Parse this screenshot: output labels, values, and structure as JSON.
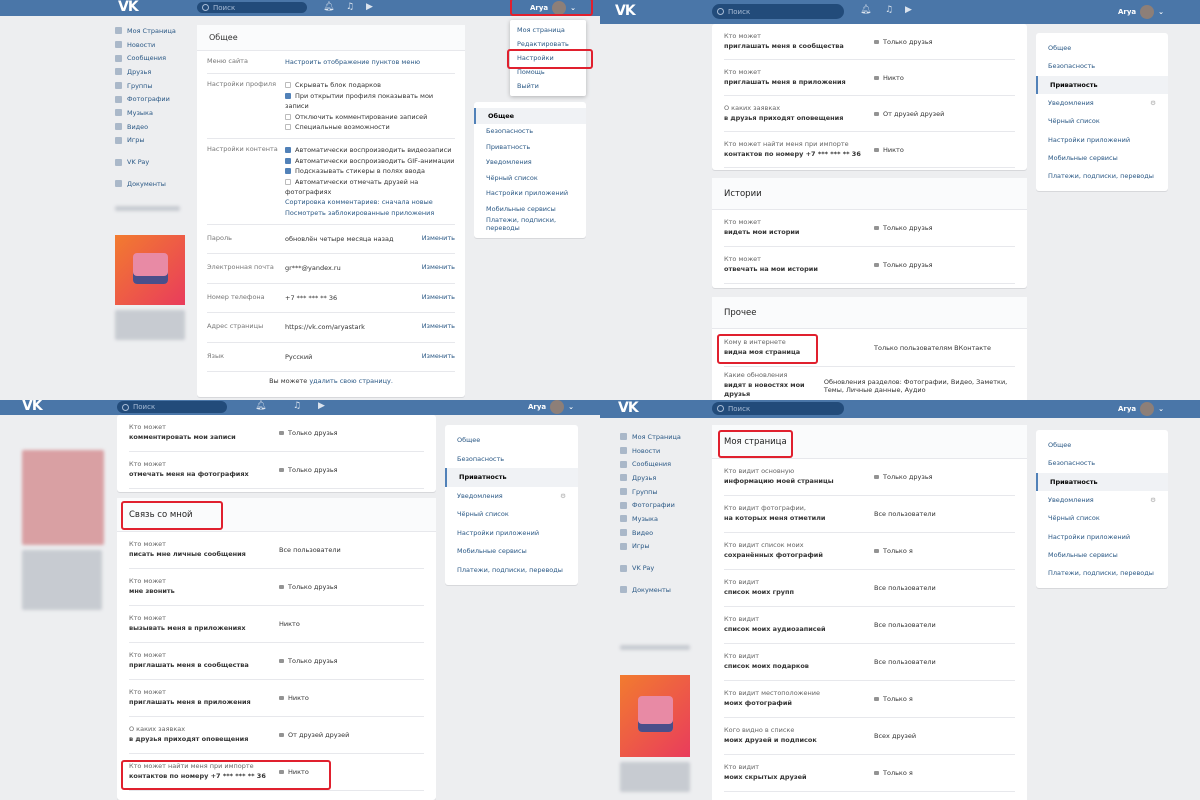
{
  "header": {
    "logo": "VK",
    "search_placeholder": "Поиск",
    "user_name": "Arya"
  },
  "colors": {
    "header": "#4a76a8",
    "link": "#2a5885",
    "highlight": "#e0202e"
  },
  "left_menu": [
    "Моя Страница",
    "Новости",
    "Сообщения",
    "Друзья",
    "Группы",
    "Фотографии",
    "Музыка",
    "Видео",
    "Игры",
    "VK Pay",
    "Документы"
  ],
  "settings_menu": [
    "Общее",
    "Безопасность",
    "Приватность",
    "Уведомления",
    "Чёрный список",
    "Настройки приложений",
    "Мобильные сервисы",
    "Платежи, подписки, переводы"
  ],
  "dropdown": [
    "Моя страница",
    "Редактировать",
    "Настройки",
    "Помощь",
    "Выйти"
  ],
  "general": {
    "title": "Общее",
    "menu_label": "Меню сайта",
    "menu_value": "Настроить отображение пунктов меню",
    "profile_label": "Настройки профиля",
    "profile_options": [
      {
        "text": "Скрывать блок подарков",
        "checked": false
      },
      {
        "text": "При открытии профиля показывать мои записи",
        "checked": true
      },
      {
        "text": "Отключить комментирование записей",
        "checked": false
      },
      {
        "text": "Специальные возможности",
        "checked": false
      }
    ],
    "content_label": "Настройки контента",
    "content_options": [
      {
        "text": "Автоматически воспроизводить видеозаписи",
        "checked": true
      },
      {
        "text": "Автоматически воспроизводить GIF-анимации",
        "checked": true
      },
      {
        "text": "Подсказывать стикеры в полях ввода",
        "checked": true
      },
      {
        "text": "Автоматически отмечать друзей на фотографиях",
        "checked": false
      }
    ],
    "sort_comments": "Сортировка комментариев: сначала новые",
    "blocked_apps": "Посмотреть заблокированные приложения",
    "fields": [
      {
        "label": "Пароль",
        "value": "обновлён четыре месяца назад",
        "action": "Изменить"
      },
      {
        "label": "Электронная почта",
        "value": "gr***@yandex.ru",
        "action": "Изменить"
      },
      {
        "label": "Номер телефона",
        "value": "+7 *** *** ** 36",
        "action": "Изменить"
      },
      {
        "label": "Адрес страницы",
        "value": "https://vk.com/aryastark",
        "action": "Изменить"
      },
      {
        "label": "Язык",
        "value": "Русский",
        "action": "Изменить"
      }
    ],
    "delete_prefix": "Вы можете ",
    "delete_link": "удалить свою страницу."
  },
  "privacy_top_right": {
    "rows1": [
      {
        "a": "Кто может",
        "b": "приглашать меня в сообщества",
        "v": "Только друзья",
        "lock": true
      },
      {
        "a": "Кто может",
        "b": "приглашать меня в приложения",
        "v": "Никто",
        "lock": true
      },
      {
        "a": "О каких заявках",
        "b": "в друзья приходят оповещения",
        "v": "От друзей друзей",
        "lock": true
      },
      {
        "a": "Кто может найти меня при импорте",
        "b": "контактов по номеру +7 *** *** ** 36",
        "v": "Никто",
        "lock": true
      }
    ],
    "stories_title": "Истории",
    "rows2": [
      {
        "a": "Кто может",
        "b": "видеть мои истории",
        "v": "Только друзья",
        "lock": true
      },
      {
        "a": "Кто может",
        "b": "отвечать на мои истории",
        "v": "Только друзья",
        "lock": true
      }
    ],
    "other_title": "Прочее",
    "rows3": [
      {
        "a": "Кому в интернете",
        "b": "видна моя страница",
        "v": "Только пользователям ВКонтакте",
        "lock": false
      },
      {
        "a": "Какие обновления",
        "b": "видят в новостях мои друзья",
        "v": "Обновления разделов: Фотографии, Видео, Заметки, Темы, Личные данные, Аудио",
        "lock": false
      }
    ]
  },
  "privacy_bottom_left": {
    "rows1": [
      {
        "a": "Кто может",
        "b": "комментировать мои записи",
        "v": "Только друзья",
        "lock": true
      },
      {
        "a": "Кто может",
        "b": "отмечать меня на фотографиях",
        "v": "Только друзья",
        "lock": true
      }
    ],
    "contact_title": "Связь со мной",
    "rows2": [
      {
        "a": "Кто может",
        "b": "писать мне личные сообщения",
        "v": "Все пользователи",
        "lock": false
      },
      {
        "a": "Кто может",
        "b": "мне звонить",
        "v": "Только друзья",
        "lock": true
      },
      {
        "a": "Кто может",
        "b": "вызывать меня в приложениях",
        "v": "Никто",
        "lock": false
      },
      {
        "a": "Кто может",
        "b": "приглашать меня в сообщества",
        "v": "Только друзья",
        "lock": true
      },
      {
        "a": "Кто может",
        "b": "приглашать меня в приложения",
        "v": "Никто",
        "lock": true
      },
      {
        "a": "О каких заявках",
        "b": "в друзья приходят оповещения",
        "v": "От друзей друзей",
        "lock": true
      },
      {
        "a": "Кто может найти меня при импорте",
        "b": "контактов по номеру +7 *** *** ** 36",
        "v": "Никто",
        "lock": true
      }
    ]
  },
  "privacy_bottom_right": {
    "title": "Моя страница",
    "rows": [
      {
        "a": "Кто видит основную",
        "b": "информацию моей страницы",
        "v": "Только друзья",
        "lock": true
      },
      {
        "a": "Кто видит фотографии,",
        "b": "на которых меня отметили",
        "v": "Все пользователи",
        "lock": false
      },
      {
        "a": "Кто видит список моих",
        "b": "сохранённых фотографий",
        "v": "Только я",
        "lock": true
      },
      {
        "a": "Кто видит",
        "b": "список моих групп",
        "v": "Все пользователи",
        "lock": false
      },
      {
        "a": "Кто видит",
        "b": "список моих аудиозаписей",
        "v": "Все пользователи",
        "lock": false
      },
      {
        "a": "Кто видит",
        "b": "список моих подарков",
        "v": "Все пользователи",
        "lock": false
      },
      {
        "a": "Кто видит местоположение",
        "b": "моих фотографий",
        "v": "Только я",
        "lock": true
      },
      {
        "a": "Кого видно в списке",
        "b": "моих друзей и подписок",
        "v": "Всех друзей",
        "lock": false
      },
      {
        "a": "Кто видит",
        "b": "моих скрытых друзей",
        "v": "Только я",
        "lock": true
      }
    ]
  }
}
